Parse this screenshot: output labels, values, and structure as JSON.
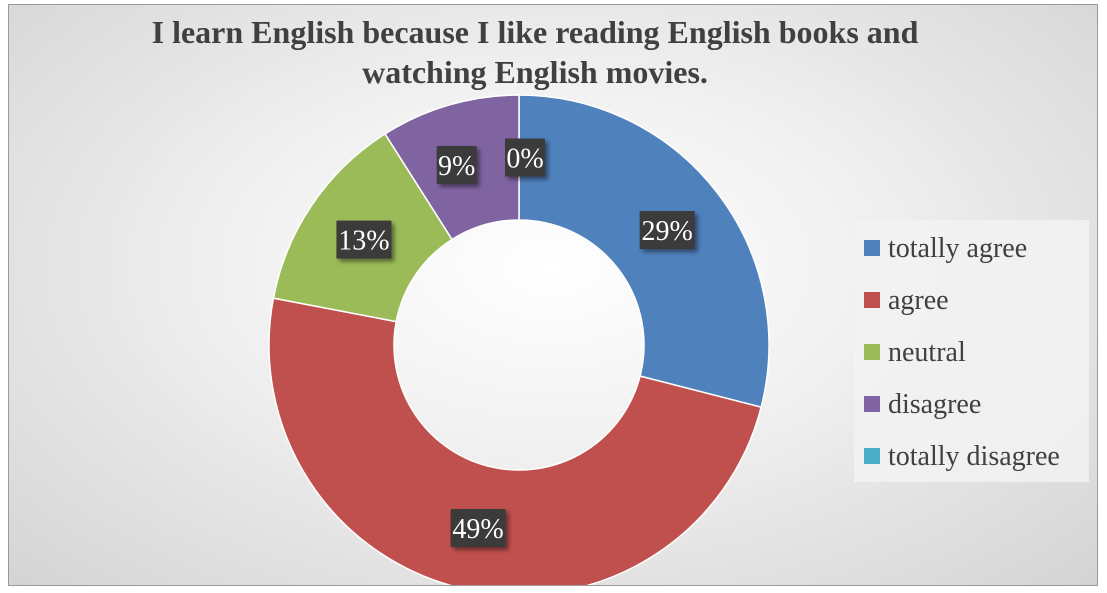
{
  "chart_data": {
    "type": "pie",
    "variant": "doughnut",
    "title": "I learn English because I like reading English books and watching English movies.",
    "title_lines": [
      "I learn English because I like reading English books and",
      "watching English movies."
    ],
    "categories": [
      "totally agree",
      "agree",
      "neutral",
      "disagree",
      "totally disagree"
    ],
    "values": [
      29,
      49,
      13,
      9,
      0
    ],
    "value_labels": [
      "29%",
      "49%",
      "13%",
      "9%",
      "0%"
    ],
    "unit": "%",
    "colors": [
      "#4f81bd",
      "#c0504d",
      "#9bbb59",
      "#8064a2",
      "#4bacc6"
    ],
    "legend": {
      "position": "right"
    }
  }
}
